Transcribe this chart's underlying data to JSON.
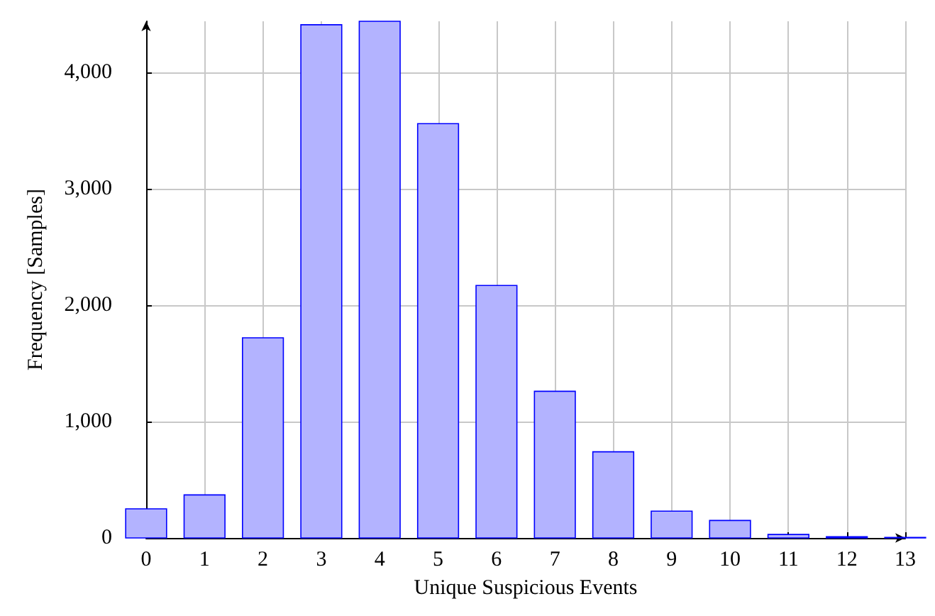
{
  "chart_data": {
    "type": "bar",
    "xlabel": "Unique Suspicious Events",
    "ylabel": "Frequency [Samples]",
    "x": [
      0,
      1,
      2,
      3,
      4,
      5,
      6,
      7,
      8,
      9,
      10,
      11,
      12,
      13
    ],
    "values": [
      250,
      370,
      1720,
      4410,
      4440,
      3560,
      2170,
      1260,
      740,
      230,
      150,
      30,
      10,
      5
    ],
    "color": "#b3b3ff",
    "xlim": [
      0,
      13
    ],
    "xticks": [
      0,
      1,
      2,
      3,
      4,
      5,
      6,
      7,
      8,
      9,
      10,
      11,
      12,
      13
    ],
    "ylim": [
      0,
      4440
    ],
    "yticks": [
      {
        "value": 0,
        "label": "0"
      },
      {
        "value": 1000,
        "label": "1,000"
      },
      {
        "value": 2000,
        "label": "2,000"
      },
      {
        "value": 3000,
        "label": "3,000"
      },
      {
        "value": 4000,
        "label": "4,000"
      }
    ],
    "grid": true
  }
}
